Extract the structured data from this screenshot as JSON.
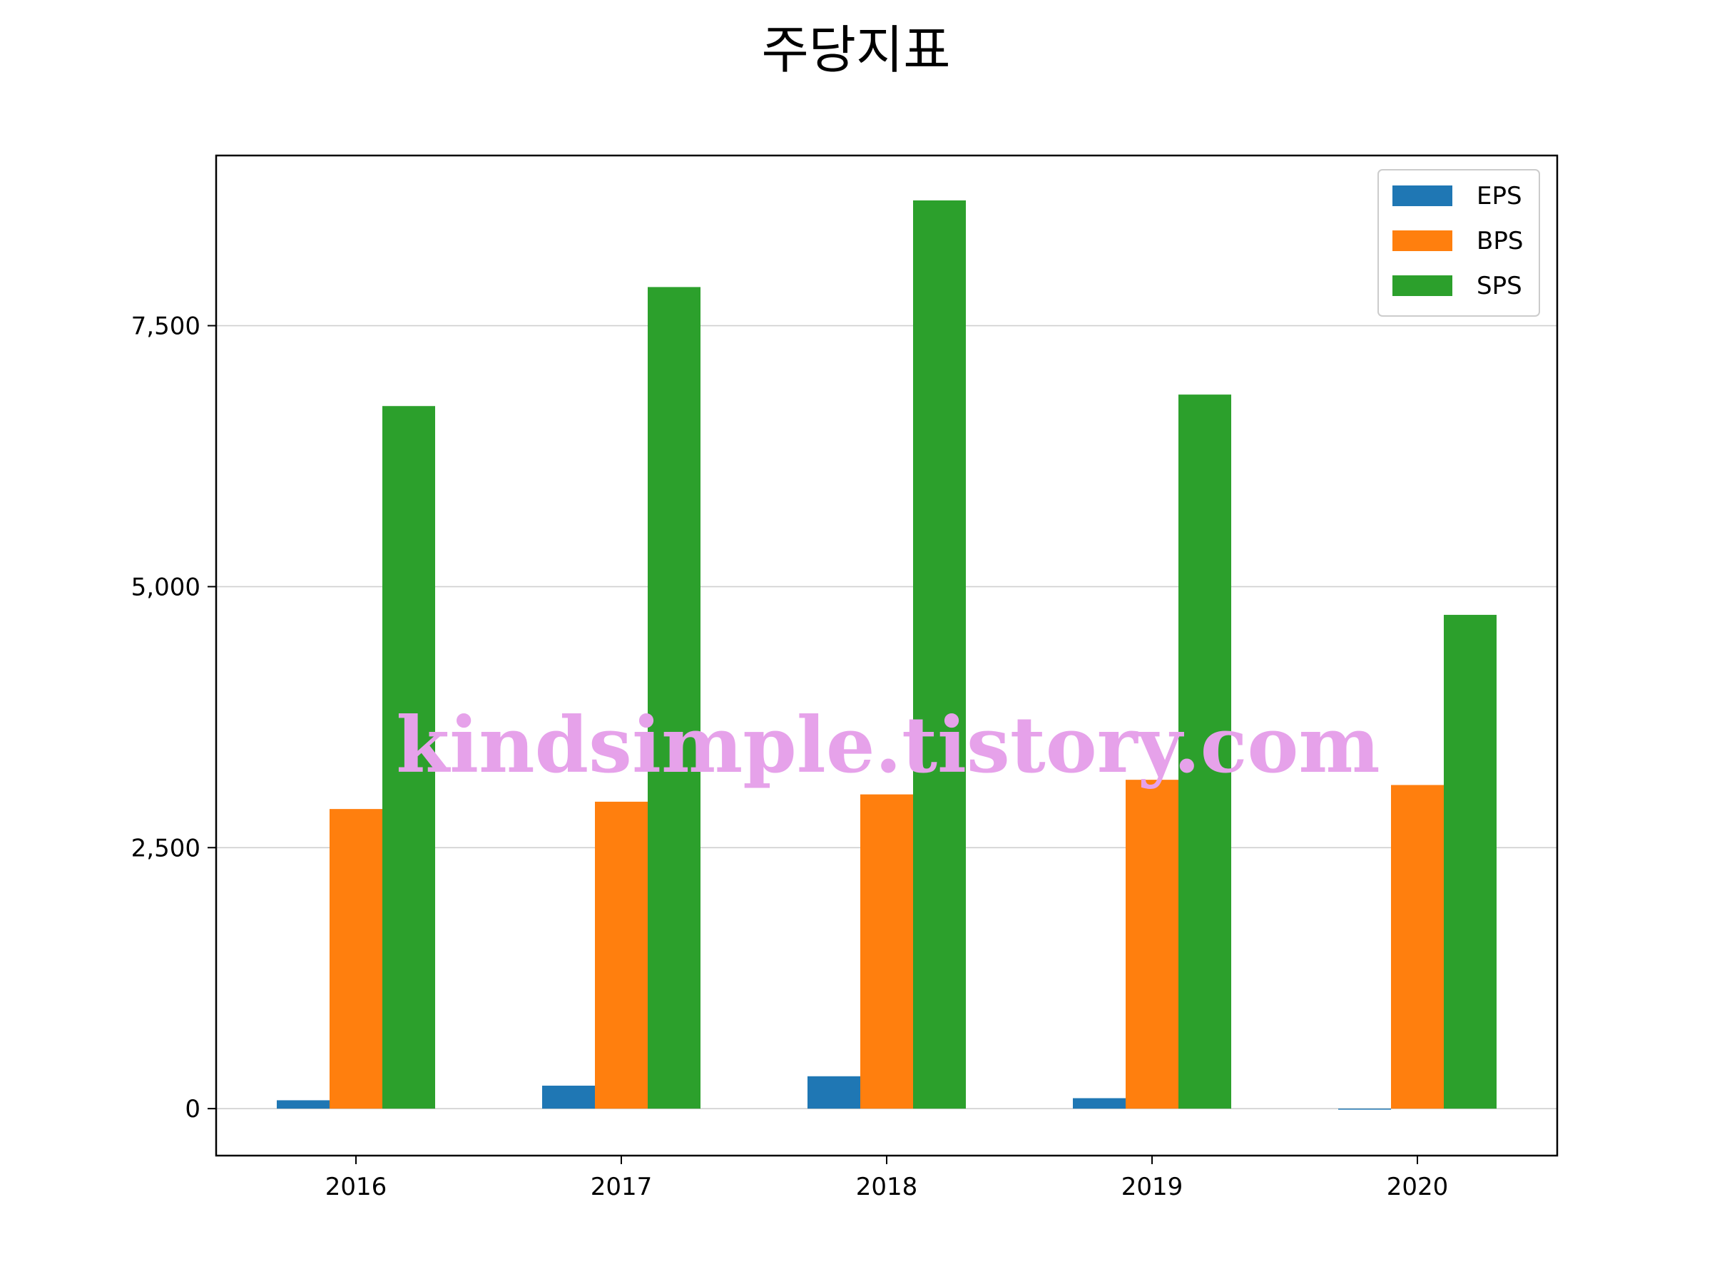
{
  "chart_data": {
    "type": "bar",
    "title": "주당지표",
    "categories": [
      "2016",
      "2017",
      "2018",
      "2019",
      "2020"
    ],
    "series": [
      {
        "name": "EPS",
        "color": "#1f77b4",
        "values": [
          80,
          220,
          310,
          100,
          -10
        ]
      },
      {
        "name": "BPS",
        "color": "#ff7f0e",
        "values": [
          2870,
          2940,
          3010,
          3150,
          3100
        ]
      },
      {
        "name": "SPS",
        "color": "#2ca02c",
        "values": [
          6730,
          7870,
          8700,
          6840,
          4730
        ]
      }
    ],
    "ylim": [
      -450,
      9130
    ],
    "yticks": [
      0,
      2500,
      5000,
      7500
    ],
    "ytick_labels": [
      "0",
      "2,500",
      "5,000",
      "7,500"
    ],
    "grid": "y",
    "legend": "top-right"
  },
  "watermark": "kindsimple.tistory.com"
}
